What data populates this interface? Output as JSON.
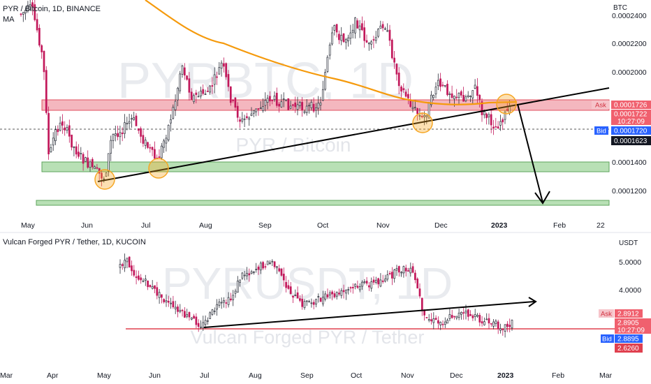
{
  "top_panel": {
    "symbol_title": "PYR / Bitcoin, 1D, BINANCE",
    "indicator": "MA",
    "currency": "BTC",
    "watermark_big": "PYRBTC, 1D",
    "watermark_small": "PYR / Bitcoin",
    "price_axis": [
      "0.0002400",
      "0.0002200",
      "0.0002000",
      "0.0001400",
      "0.0001200"
    ],
    "time_axis": [
      "May",
      "Jun",
      "Jul",
      "Aug",
      "Sep",
      "Oct",
      "Nov",
      "Dec",
      "2023",
      "Feb",
      "22"
    ],
    "ask_label": "Ask",
    "ask_price": "0.0001726",
    "last_price": "0.0001722",
    "countdown": "10:27:09",
    "bid_label": "Bid",
    "bid_price": "0.0001720",
    "crosshair_price": "0.0001623"
  },
  "bottom_panel": {
    "symbol_title": "Vulcan Forged PYR / Tether, 1D, KUCOIN",
    "currency": "USDT",
    "watermark_big": "PYRUSDT, 1D",
    "watermark_small": "Vulcan Forged PYR / Tether",
    "price_axis": [
      "5.0000",
      "4.0000"
    ],
    "time_axis": [
      "Mar",
      "Apr",
      "May",
      "Jun",
      "Jul",
      "Aug",
      "Sep",
      "Oct",
      "Nov",
      "Dec",
      "2023",
      "Feb",
      "Mar"
    ],
    "ask_label": "Ask",
    "ask_price": "2.8912",
    "last_price": "2.8905",
    "countdown": "10:27:09",
    "bid_label": "Bid",
    "bid_price": "2.8895",
    "support_price": "2.6260"
  },
  "colors": {
    "up": "#2a2e39",
    "down": "#c2185b",
    "resistance_fill": "#f4b7bf",
    "resistance_stroke": "#e0505f",
    "support_fill": "#b8e0b5",
    "support_stroke": "#5ea35c",
    "ma": "#f59a0c",
    "circle": "#f6a623",
    "ask": "#f0606e",
    "bid": "#2962ff",
    "dark": "#131722"
  },
  "chart_data": [
    {
      "type": "candlestick",
      "title": "PYR / Bitcoin, 1D, BINANCE",
      "indicators": [
        "MA"
      ],
      "x_ticks": [
        "May",
        "Jun",
        "Jul",
        "Aug",
        "Sep",
        "Oct",
        "Nov",
        "Dec",
        "2023",
        "Feb",
        "22"
      ],
      "y_ticks": [
        0.00024,
        0.00022,
        0.0002,
        0.00014,
        0.00012
      ],
      "ylim": [
        0.000114,
        0.000245
      ],
      "resistance_zone": [
        0.000167,
        0.0001735
      ],
      "support_zones": [
        [
          0.000134,
          0.00014
        ],
        [
          0.000114,
          0.000116
        ]
      ],
      "last_price": 0.0001722,
      "ask": 0.0001726,
      "bid": 0.000172,
      "crosshair_price": 0.0001623
    },
    {
      "type": "candlestick",
      "title": "Vulcan Forged PYR / Tether, 1D, KUCOIN",
      "x_ticks": [
        "Mar",
        "Apr",
        "May",
        "Jun",
        "Jul",
        "Aug",
        "Sep",
        "Oct",
        "Nov",
        "Dec",
        "2023",
        "Feb",
        "Mar"
      ],
      "y_ticks": [
        5.0,
        4.0
      ],
      "last_price": 2.8905,
      "ask": 2.8912,
      "bid": 2.8895,
      "support_line": 2.626
    }
  ]
}
